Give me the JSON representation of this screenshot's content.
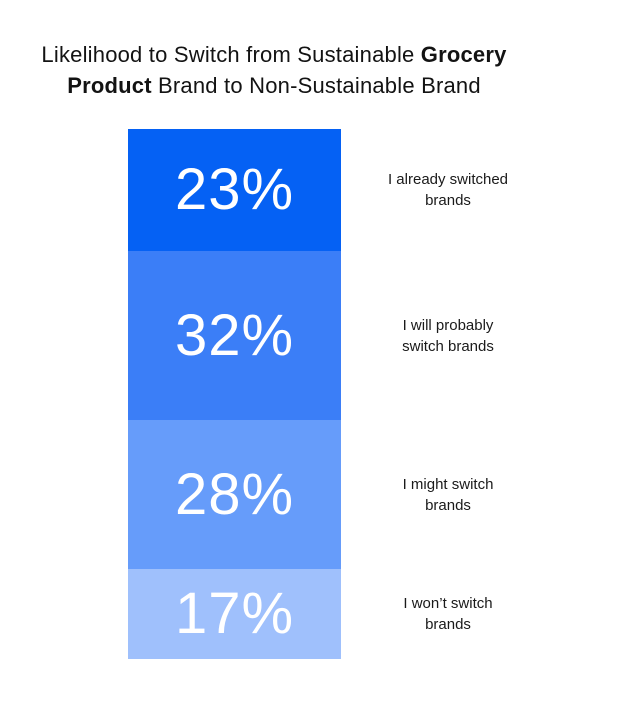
{
  "title": {
    "full": "Likelihood to Switch from Sustainable Grocery Product Brand to Non-Sustainable Brand",
    "line1_regular": "Likelihood to Switch from Sustainable ",
    "line1_bold": "Grocery",
    "line2_bold": "Product",
    "line2_regular": " Brand to Non-Sustainable Brand"
  },
  "chart_data": {
    "type": "bar",
    "stacked": true,
    "orientation": "vertical-single-column",
    "title": "Likelihood to Switch from Sustainable Grocery Product Brand to Non-Sustainable Brand",
    "unit": "%",
    "total": 100,
    "categories": [
      "I already switched brands",
      "I will probably switch brands",
      "I might switch brands",
      "I won’t switch brands"
    ],
    "values": [
      23,
      32,
      28,
      17
    ],
    "category_label_lines": [
      [
        "I already switched",
        "brands"
      ],
      [
        "I will probably",
        "switch brands"
      ],
      [
        "I might switch",
        "brands"
      ],
      [
        "I won’t switch",
        "brands"
      ]
    ],
    "segment_colors": [
      "#0561F4",
      "#3B7EF7",
      "#669CFA",
      "#9FC0FC"
    ],
    "value_text_color": "#FFFFFF",
    "label_text_color": "#1A1A1A",
    "background": "#FFFFFF",
    "legend": "none",
    "axes": "none"
  }
}
